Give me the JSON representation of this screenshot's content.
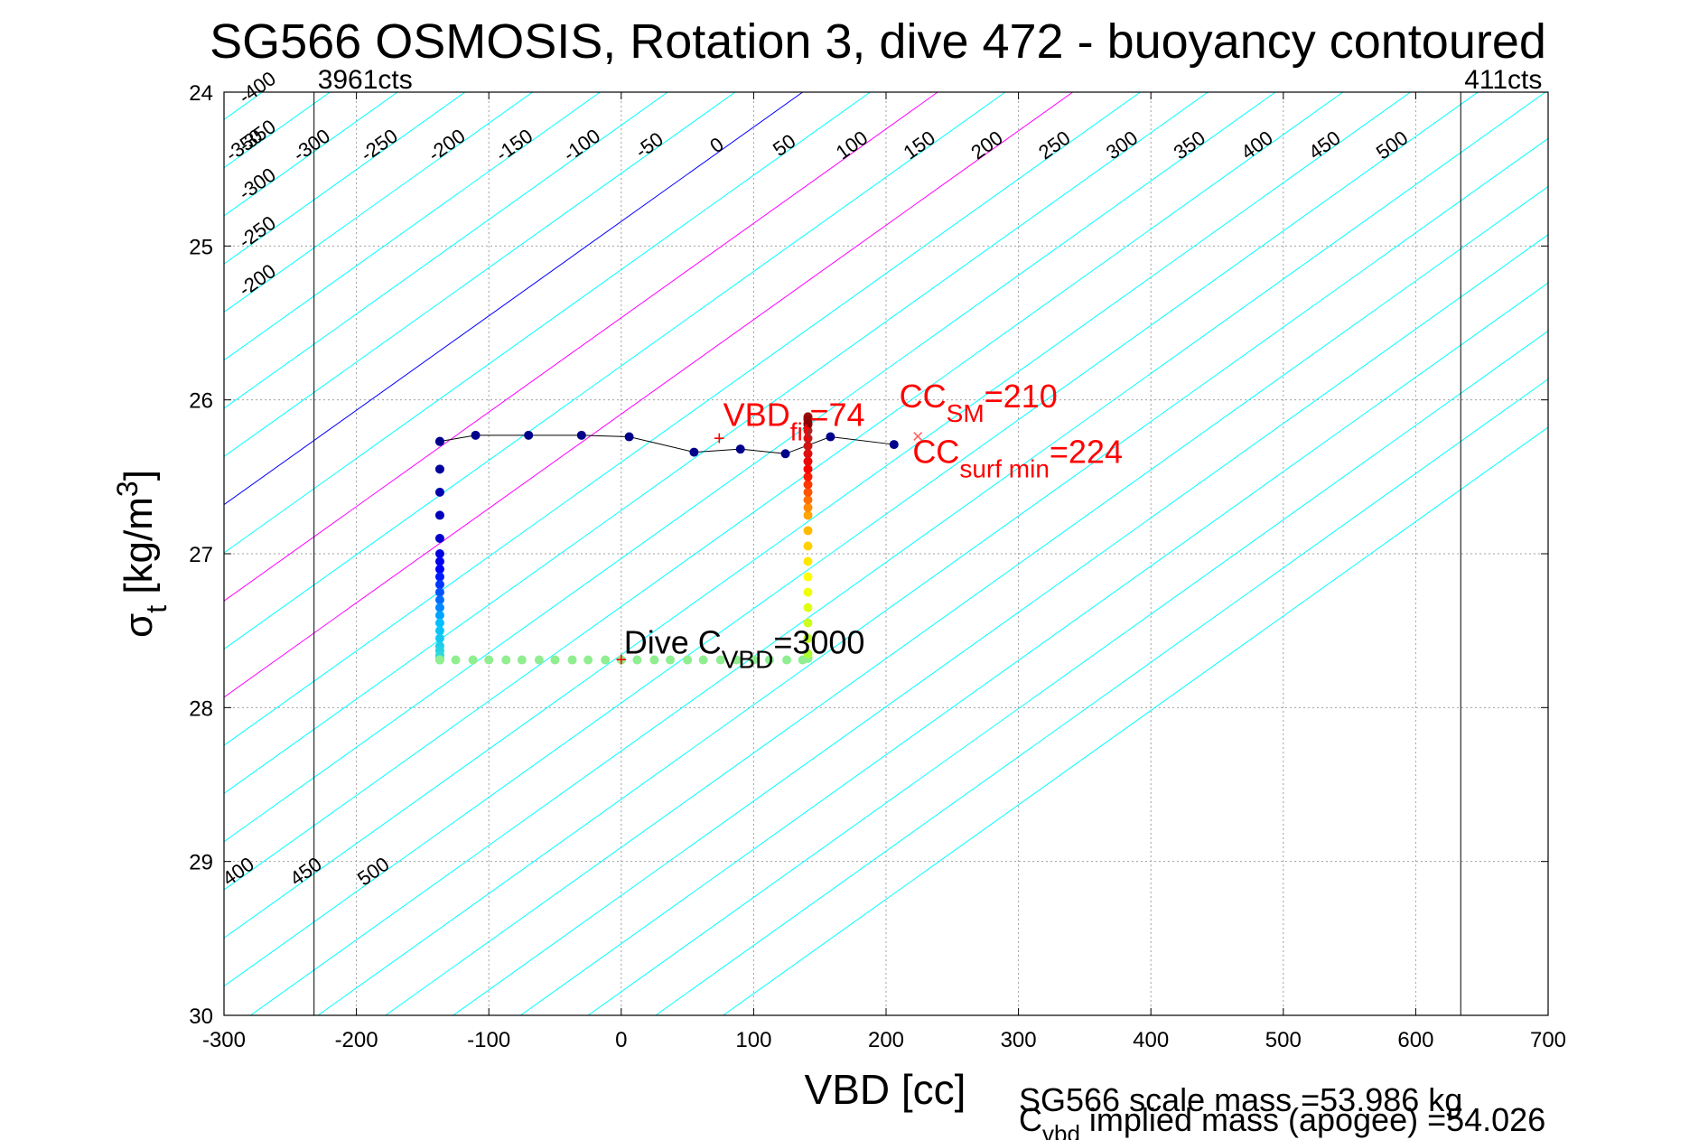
{
  "chart_data": {
    "type": "scatter",
    "title": "SG566 OSMOSIS, Rotation 3, dive 472 - buoyancy contoured",
    "xlabel": "VBD [cc]",
    "ylabel": {
      "main": "σ",
      "sub": "t",
      "unit": " [kg/m",
      "sup": "3",
      "close": "]"
    },
    "xlim": [
      -300,
      700
    ],
    "ylim": [
      24,
      30
    ],
    "y_reversed": true,
    "grid": true,
    "xticks": [
      -300,
      -200,
      -100,
      0,
      100,
      200,
      300,
      400,
      500,
      600,
      700
    ],
    "yticks": [
      24,
      25,
      26,
      27,
      28,
      29,
      30
    ],
    "xtick_labels": [
      "-300",
      "-200",
      "-100",
      "0",
      "100",
      "200",
      "300",
      "400",
      "500",
      "600",
      "700"
    ],
    "ytick_labels": [
      "24",
      "25",
      "26",
      "27",
      "28",
      "29",
      "30"
    ],
    "limit_lines": [
      {
        "x": -232,
        "label": "3961cts"
      },
      {
        "x": 634,
        "label": "411cts"
      }
    ],
    "buoyancy_contours": {
      "levels": [
        -400,
        -350,
        -300,
        -250,
        -200,
        -150,
        -100,
        -50,
        0,
        50,
        100,
        150,
        200,
        250,
        300,
        350,
        400,
        450,
        500
      ],
      "zero_level": 0,
      "magenta_levels": [
        100,
        200
      ],
      "top_labels": [
        "-400",
        "-350",
        "-300",
        "-250",
        "-200",
        "-150",
        "-100",
        "-50",
        "0",
        "50",
        "100",
        "150",
        "200",
        "250",
        "300",
        "350",
        "400",
        "450",
        "500"
      ],
      "bottom_labels": [
        "-150",
        "-100",
        "-50",
        "0",
        "50",
        "100",
        "150",
        "200",
        "250",
        "300",
        "350",
        "400",
        "450",
        "500"
      ]
    },
    "series": [
      {
        "role": "dive-descent",
        "color_gradient": [
          "#00008b",
          "#0000ff",
          "#00bfff",
          "#40e0d0"
        ],
        "x": [
          -137,
          -137,
          -137,
          -137,
          -137,
          -137,
          -137,
          -137,
          -137,
          -137,
          -137,
          -137,
          -137,
          -137,
          -137,
          -137,
          -137,
          -137,
          -137,
          -137,
          -137,
          -137
        ],
        "y": [
          26.27,
          26.45,
          26.6,
          26.75,
          26.9,
          27.0,
          27.05,
          27.1,
          27.15,
          27.2,
          27.25,
          27.3,
          27.35,
          27.4,
          27.45,
          27.5,
          27.55,
          27.6,
          27.63,
          27.66,
          27.68,
          27.69
        ]
      },
      {
        "role": "apogee",
        "color": "#90ee90",
        "x": [
          -137,
          -125,
          -112,
          -100,
          -87,
          -75,
          -62,
          -50,
          -37,
          -25,
          -12,
          0,
          12,
          25,
          37,
          50,
          62,
          75,
          87,
          100,
          112,
          125,
          137,
          141
        ],
        "y": [
          27.69,
          27.69,
          27.69,
          27.69,
          27.69,
          27.69,
          27.69,
          27.69,
          27.69,
          27.69,
          27.69,
          27.69,
          27.69,
          27.69,
          27.69,
          27.69,
          27.69,
          27.69,
          27.69,
          27.69,
          27.69,
          27.69,
          27.69,
          27.68
        ]
      },
      {
        "role": "climb",
        "color_gradient": [
          "#adff2f",
          "#ffff00",
          "#ff8c00",
          "#ff0000",
          "#b22222",
          "#8b0000"
        ],
        "x": [
          141,
          141,
          141,
          141,
          141,
          141,
          141,
          141,
          141,
          141,
          141,
          141,
          141,
          141,
          141,
          141,
          141,
          141,
          141,
          141,
          141,
          141,
          141,
          141,
          141,
          141
        ],
        "y": [
          27.65,
          27.55,
          27.45,
          27.35,
          27.25,
          27.15,
          27.05,
          26.95,
          26.85,
          26.75,
          26.7,
          26.65,
          26.6,
          26.55,
          26.5,
          26.45,
          26.4,
          26.35,
          26.3,
          26.25,
          26.2,
          26.15,
          26.12,
          26.11,
          26.13,
          26.16
        ]
      },
      {
        "role": "surface",
        "color": "#00008b",
        "x": [
          -137,
          -110,
          -70,
          -30,
          6,
          55,
          90,
          124,
          158,
          206
        ],
        "y": [
          26.27,
          26.23,
          26.23,
          26.23,
          26.24,
          26.34,
          26.32,
          26.35,
          26.24,
          26.29
        ]
      }
    ],
    "markers": [
      {
        "x": 74,
        "y": 26.25,
        "symbol": "+",
        "color": "#ff0000"
      },
      {
        "x": 0,
        "y": 27.69,
        "symbol": "+",
        "color": "#ff0000"
      },
      {
        "x": 224,
        "y": 26.24,
        "symbol": "×",
        "color": "#ff6060"
      }
    ],
    "annotations": [
      {
        "x": 77,
        "y": 26.17,
        "color": "#ff0000",
        "parts": [
          "VBD",
          "fit",
          "=74"
        ]
      },
      {
        "x": 210,
        "y": 26.05,
        "color": "#ff0000",
        "parts": [
          "CC",
          "SM",
          "=210"
        ]
      },
      {
        "x": 220,
        "y": 26.41,
        "color": "#ff0000",
        "parts": [
          "CC",
          "surf min",
          "=224"
        ]
      },
      {
        "x": 2,
        "y": 27.65,
        "color": "#000000",
        "parts": [
          "Dive C",
          "VBD",
          "=3000"
        ]
      }
    ],
    "footnotes": [
      "SG566 scale mass =53.986 kg",
      {
        "main": "C",
        "sub": "vbd",
        "rest": " implied mass (apogee) =54.026"
      }
    ]
  },
  "colors": {
    "contour": "#00ffff",
    "zero_contour": "#0000ff",
    "magenta_contour": "#ff00ff",
    "grid": "#a0a0a0",
    "axes": "#000000"
  }
}
